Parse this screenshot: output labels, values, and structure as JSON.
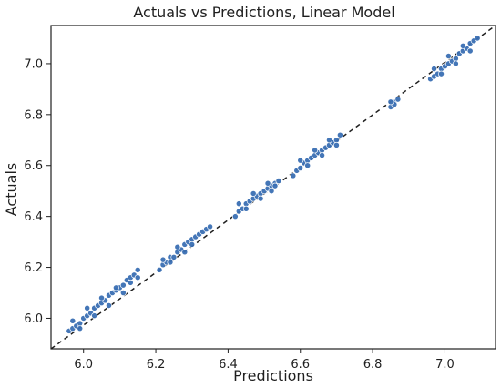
{
  "chart_data": {
    "type": "scatter",
    "title": "Actuals vs Predictions, Linear Model",
    "xlabel": "Predictions",
    "ylabel": "Actuals",
    "xlim": [
      5.91,
      7.14
    ],
    "ylim": [
      5.88,
      7.15
    ],
    "x_ticks": [
      6.0,
      6.2,
      6.4,
      6.6,
      6.8,
      7.0
    ],
    "y_ticks": [
      6.0,
      6.2,
      6.4,
      6.6,
      6.8,
      7.0
    ],
    "x_tick_labels": [
      "6.0",
      "6.2",
      "6.4",
      "6.6",
      "6.8",
      "7.0"
    ],
    "y_tick_labels": [
      "6.0",
      "6.2",
      "6.4",
      "6.6",
      "6.8",
      "7.0"
    ],
    "point_color": "#3a6fb3",
    "point_edge_color": "#ffffff",
    "reference_line": {
      "style": "dashed",
      "color": "#1f1f1f",
      "from": [
        5.91,
        5.88
      ],
      "to": [
        7.14,
        7.15
      ]
    },
    "series": [
      {
        "values": [
          [
            5.96,
            5.95
          ],
          [
            5.97,
            5.96
          ],
          [
            5.98,
            5.97
          ],
          [
            5.99,
            5.98
          ],
          [
            6.0,
            6.0
          ],
          [
            6.01,
            6.01
          ],
          [
            6.02,
            6.02
          ],
          [
            6.03,
            6.04
          ],
          [
            6.04,
            6.05
          ],
          [
            6.05,
            6.06
          ],
          [
            6.06,
            6.07
          ],
          [
            6.07,
            6.09
          ],
          [
            6.08,
            6.1
          ],
          [
            6.09,
            6.11
          ],
          [
            6.1,
            6.12
          ],
          [
            6.11,
            6.13
          ],
          [
            6.12,
            6.15
          ],
          [
            6.13,
            6.16
          ],
          [
            6.14,
            6.17
          ],
          [
            6.15,
            6.19
          ],
          [
            5.97,
            5.99
          ],
          [
            5.99,
            5.96
          ],
          [
            6.01,
            6.04
          ],
          [
            6.03,
            6.01
          ],
          [
            6.05,
            6.08
          ],
          [
            6.07,
            6.05
          ],
          [
            6.09,
            6.12
          ],
          [
            6.11,
            6.1
          ],
          [
            6.13,
            6.14
          ],
          [
            6.15,
            6.16
          ],
          [
            6.21,
            6.19
          ],
          [
            6.22,
            6.21
          ],
          [
            6.23,
            6.22
          ],
          [
            6.24,
            6.24
          ],
          [
            6.25,
            6.24
          ],
          [
            6.26,
            6.26
          ],
          [
            6.27,
            6.27
          ],
          [
            6.28,
            6.29
          ],
          [
            6.29,
            6.3
          ],
          [
            6.3,
            6.31
          ],
          [
            6.31,
            6.32
          ],
          [
            6.32,
            6.33
          ],
          [
            6.33,
            6.34
          ],
          [
            6.34,
            6.35
          ],
          [
            6.35,
            6.36
          ],
          [
            6.22,
            6.23
          ],
          [
            6.24,
            6.22
          ],
          [
            6.26,
            6.28
          ],
          [
            6.28,
            6.26
          ],
          [
            6.3,
            6.29
          ],
          [
            6.42,
            6.4
          ],
          [
            6.43,
            6.42
          ],
          [
            6.44,
            6.43
          ],
          [
            6.45,
            6.45
          ],
          [
            6.46,
            6.46
          ],
          [
            6.47,
            6.47
          ],
          [
            6.48,
            6.48
          ],
          [
            6.49,
            6.49
          ],
          [
            6.5,
            6.5
          ],
          [
            6.51,
            6.51
          ],
          [
            6.52,
            6.52
          ],
          [
            6.53,
            6.53
          ],
          [
            6.54,
            6.54
          ],
          [
            6.43,
            6.45
          ],
          [
            6.45,
            6.43
          ],
          [
            6.47,
            6.49
          ],
          [
            6.49,
            6.47
          ],
          [
            6.51,
            6.53
          ],
          [
            6.52,
            6.5
          ],
          [
            6.53,
            6.52
          ],
          [
            6.58,
            6.56
          ],
          [
            6.59,
            6.58
          ],
          [
            6.6,
            6.59
          ],
          [
            6.61,
            6.61
          ],
          [
            6.62,
            6.62
          ],
          [
            6.63,
            6.63
          ],
          [
            6.64,
            6.64
          ],
          [
            6.65,
            6.65
          ],
          [
            6.66,
            6.66
          ],
          [
            6.67,
            6.67
          ],
          [
            6.68,
            6.68
          ],
          [
            6.69,
            6.69
          ],
          [
            6.7,
            6.7
          ],
          [
            6.71,
            6.72
          ],
          [
            6.6,
            6.62
          ],
          [
            6.62,
            6.6
          ],
          [
            6.64,
            6.66
          ],
          [
            6.66,
            6.64
          ],
          [
            6.68,
            6.7
          ],
          [
            6.7,
            6.68
          ],
          [
            6.85,
            6.83
          ],
          [
            6.86,
            6.85
          ],
          [
            6.87,
            6.86
          ],
          [
            6.86,
            6.84
          ],
          [
            6.85,
            6.85
          ],
          [
            6.96,
            6.94
          ],
          [
            6.97,
            6.95
          ],
          [
            6.98,
            6.96
          ],
          [
            6.99,
            6.98
          ],
          [
            7.0,
            6.99
          ],
          [
            7.01,
            7.0
          ],
          [
            7.02,
            7.01
          ],
          [
            7.03,
            7.02
          ],
          [
            7.04,
            7.04
          ],
          [
            7.05,
            7.05
          ],
          [
            7.06,
            7.06
          ],
          [
            7.07,
            7.08
          ],
          [
            7.08,
            7.09
          ],
          [
            7.09,
            7.1
          ],
          [
            6.97,
            6.98
          ],
          [
            6.99,
            6.96
          ],
          [
            7.01,
            7.03
          ],
          [
            7.03,
            7.0
          ],
          [
            7.05,
            7.07
          ],
          [
            7.07,
            7.05
          ]
        ]
      }
    ]
  }
}
